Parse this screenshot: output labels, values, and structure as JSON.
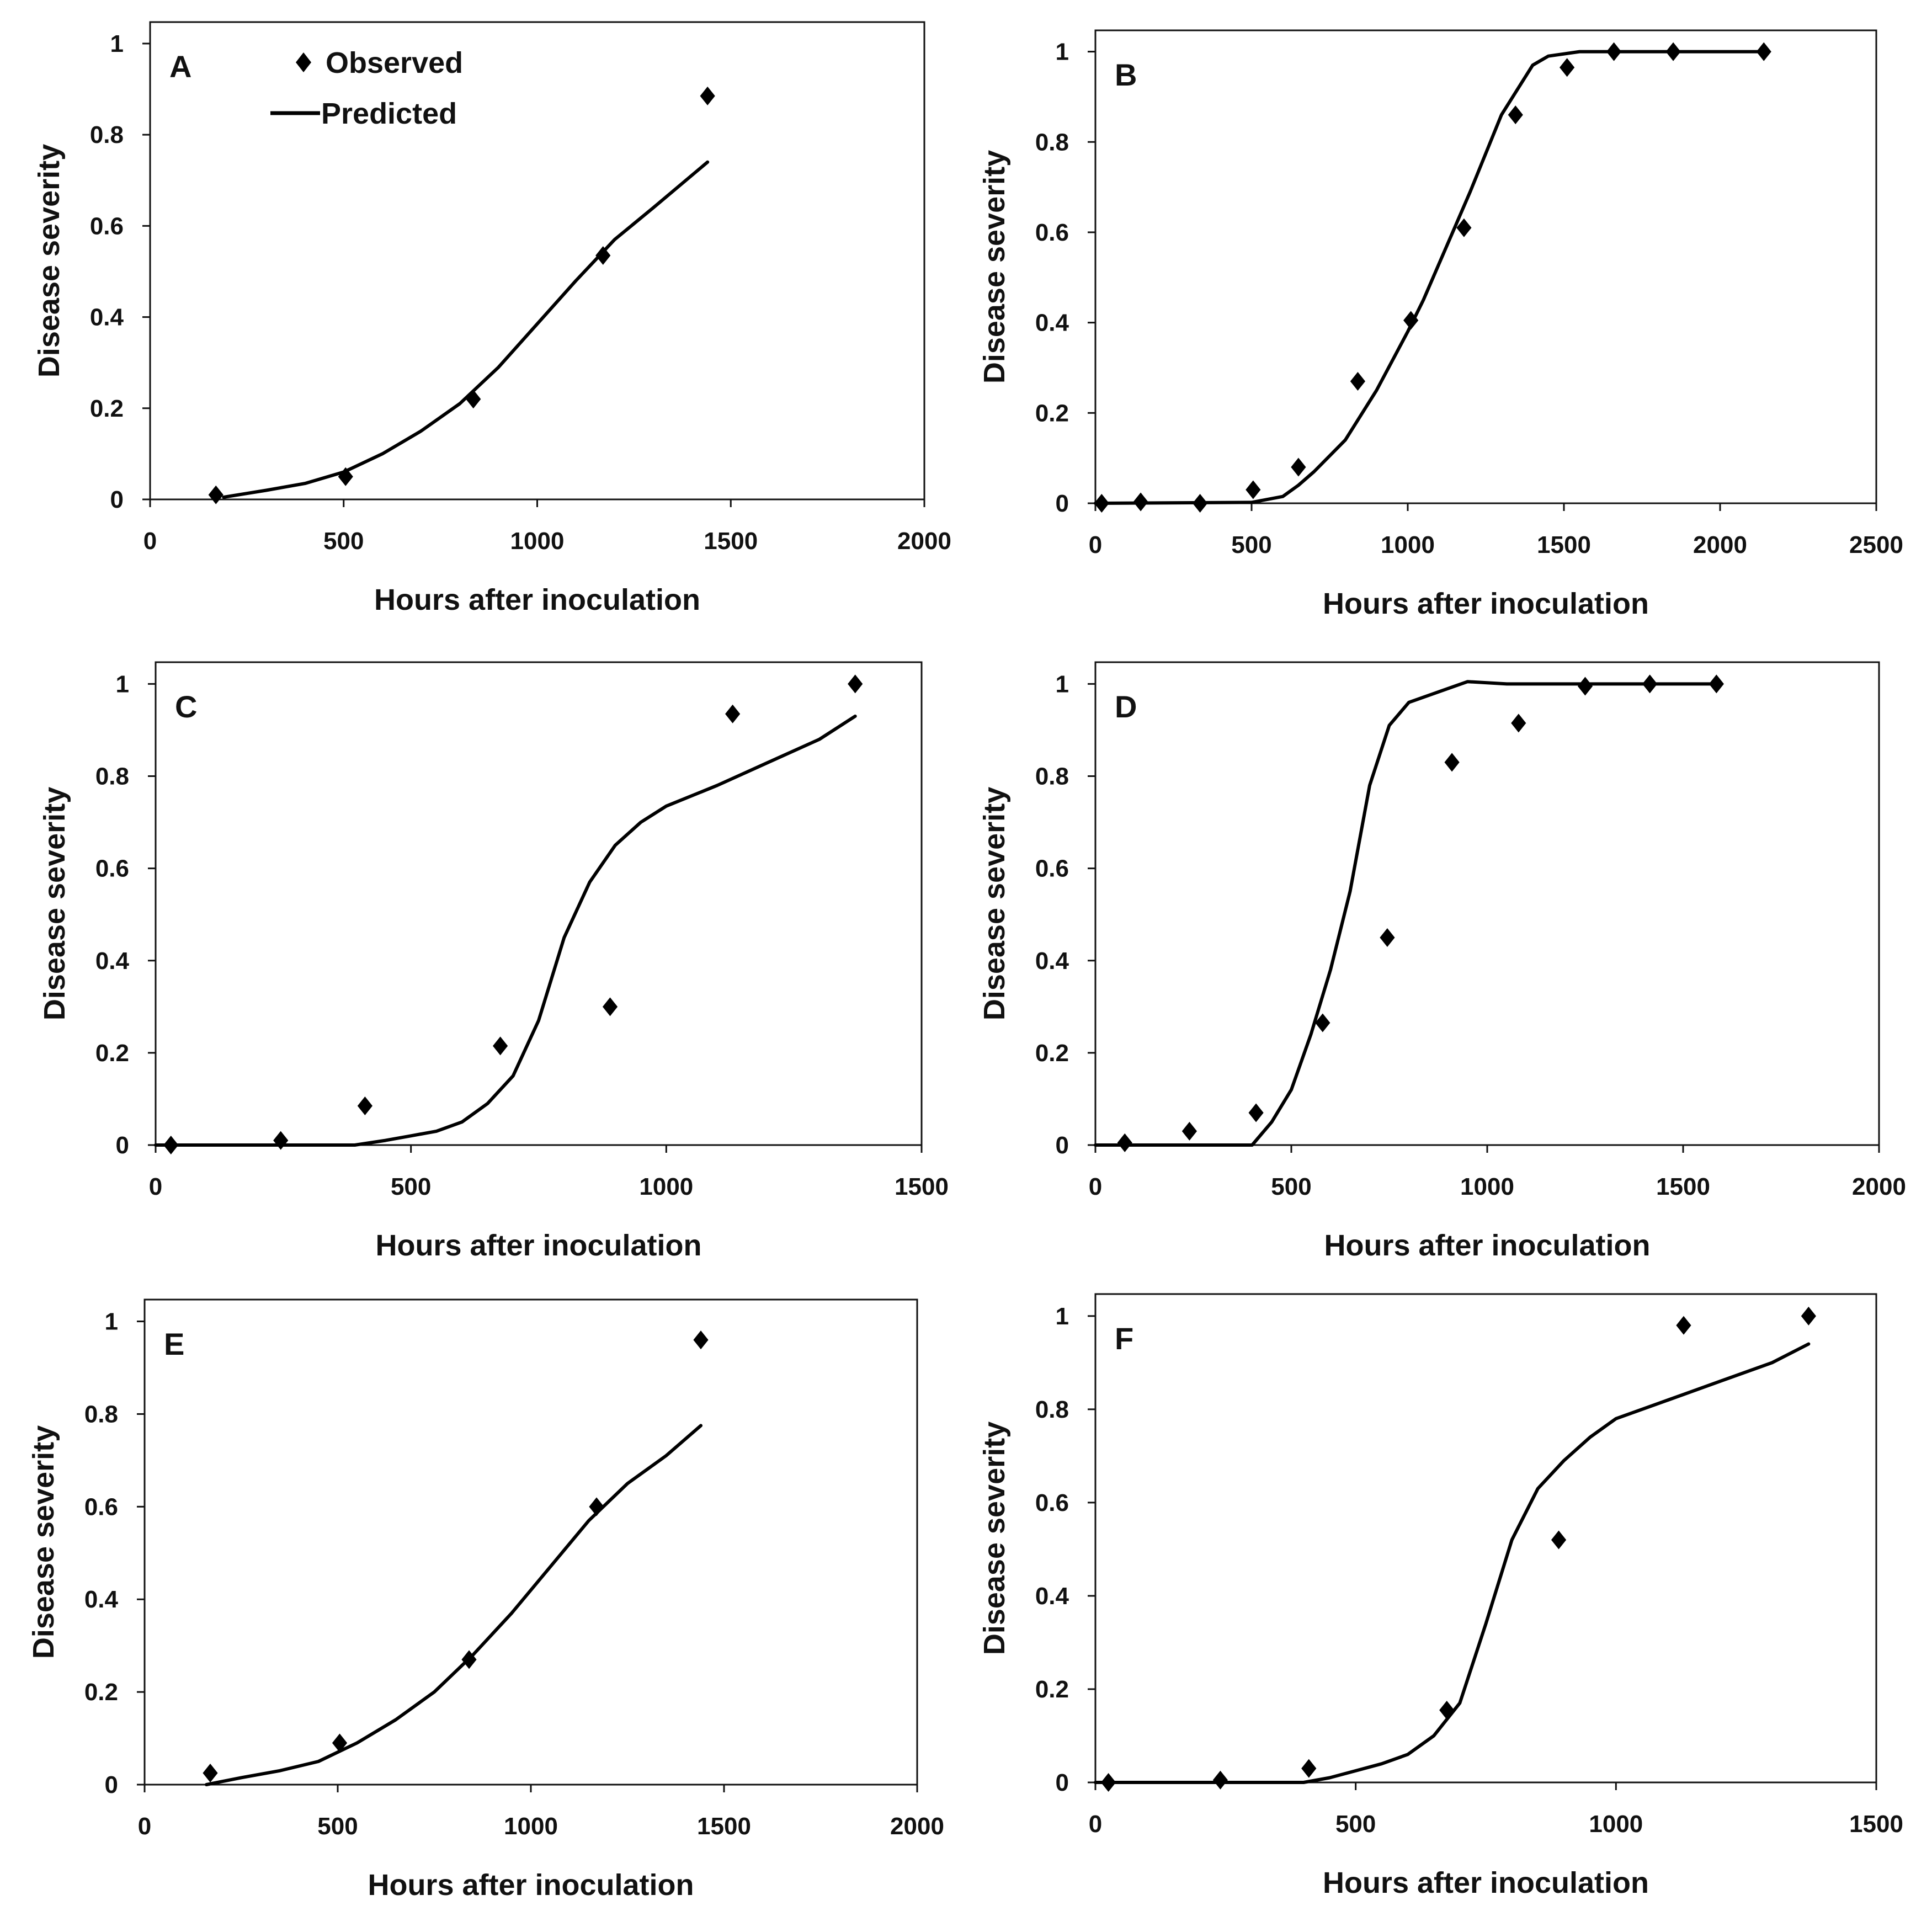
{
  "figure": {
    "legend": {
      "observed": "Observed",
      "predicted": "Predicted"
    }
  },
  "chart_data": [
    {
      "panel": "A",
      "type": "scatter+line",
      "xlabel": "Hours after inoculation",
      "ylabel": "Disease severity",
      "xlim": [
        0,
        2000
      ],
      "ylim": [
        0,
        1.0
      ],
      "xticks": [
        0,
        500,
        1000,
        1500,
        2000
      ],
      "yticks": [
        0,
        0.2,
        0.4,
        0.6,
        0.8,
        1
      ],
      "observed": [
        [
          170,
          0.01
        ],
        [
          505,
          0.05
        ],
        [
          835,
          0.22
        ],
        [
          1170,
          0.535
        ],
        [
          1440,
          0.885
        ]
      ],
      "predicted": [
        [
          190,
          0.005
        ],
        [
          300,
          0.02
        ],
        [
          400,
          0.035
        ],
        [
          500,
          0.06
        ],
        [
          600,
          0.1
        ],
        [
          700,
          0.15
        ],
        [
          800,
          0.21
        ],
        [
          900,
          0.29
        ],
        [
          1000,
          0.385
        ],
        [
          1100,
          0.48
        ],
        [
          1200,
          0.57
        ],
        [
          1300,
          0.64
        ],
        [
          1440,
          0.74
        ]
      ]
    },
    {
      "panel": "B",
      "type": "scatter+line",
      "xlabel": "Hours after inoculation",
      "ylabel": "Disease severity",
      "xlim": [
        0,
        2500
      ],
      "ylim": [
        0,
        1.0
      ],
      "xticks": [
        0,
        500,
        1000,
        1500,
        2000,
        2500
      ],
      "yticks": [
        0,
        0.2,
        0.4,
        0.6,
        0.8,
        1
      ],
      "observed": [
        [
          20,
          0
        ],
        [
          145,
          0.003
        ],
        [
          335,
          0
        ],
        [
          505,
          0.03
        ],
        [
          650,
          0.08
        ],
        [
          840,
          0.27
        ],
        [
          1010,
          0.405
        ],
        [
          1180,
          0.61
        ],
        [
          1345,
          0.86
        ],
        [
          1510,
          0.965
        ],
        [
          1660,
          1.0
        ],
        [
          1850,
          1.0
        ],
        [
          2140,
          1.0
        ]
      ],
      "predicted": [
        [
          0,
          0
        ],
        [
          500,
          0.002
        ],
        [
          600,
          0.015
        ],
        [
          650,
          0.04
        ],
        [
          700,
          0.07
        ],
        [
          800,
          0.14
        ],
        [
          900,
          0.25
        ],
        [
          1000,
          0.38
        ],
        [
          1050,
          0.45
        ],
        [
          1100,
          0.53
        ],
        [
          1150,
          0.61
        ],
        [
          1200,
          0.69
        ],
        [
          1300,
          0.86
        ],
        [
          1400,
          0.97
        ],
        [
          1450,
          0.99
        ],
        [
          1550,
          1.0
        ],
        [
          2140,
          1.0
        ]
      ]
    },
    {
      "panel": "C",
      "type": "scatter+line",
      "xlabel": "Hours after inoculation",
      "ylabel": "Disease severity",
      "xlim": [
        0,
        1500
      ],
      "ylim": [
        0,
        1.0
      ],
      "xticks": [
        0,
        500,
        1000,
        1500
      ],
      "yticks": [
        0,
        0.2,
        0.4,
        0.6,
        0.8,
        1
      ],
      "observed": [
        [
          30,
          0
        ],
        [
          245,
          0.01
        ],
        [
          410,
          0.085
        ],
        [
          675,
          0.215
        ],
        [
          890,
          0.3
        ],
        [
          1130,
          0.935
        ],
        [
          1370,
          1.0
        ]
      ],
      "predicted": [
        [
          0,
          0
        ],
        [
          390,
          0
        ],
        [
          450,
          0.01
        ],
        [
          500,
          0.02
        ],
        [
          550,
          0.03
        ],
        [
          600,
          0.05
        ],
        [
          650,
          0.09
        ],
        [
          700,
          0.15
        ],
        [
          750,
          0.27
        ],
        [
          800,
          0.45
        ],
        [
          850,
          0.57
        ],
        [
          900,
          0.65
        ],
        [
          950,
          0.7
        ],
        [
          1000,
          0.735
        ],
        [
          1100,
          0.78
        ],
        [
          1200,
          0.83
        ],
        [
          1300,
          0.88
        ],
        [
          1370,
          0.93
        ]
      ]
    },
    {
      "panel": "D",
      "type": "scatter+line",
      "xlabel": "Hours after inoculation",
      "ylabel": "Disease severity",
      "xlim": [
        0,
        2000
      ],
      "ylim": [
        0,
        1.0
      ],
      "xticks": [
        0,
        500,
        1000,
        1500,
        2000
      ],
      "yticks": [
        0,
        0.2,
        0.4,
        0.6,
        0.8,
        1
      ],
      "observed": [
        [
          75,
          0.005
        ],
        [
          240,
          0.03
        ],
        [
          410,
          0.07
        ],
        [
          580,
          0.265
        ],
        [
          745,
          0.45
        ],
        [
          910,
          0.83
        ],
        [
          1080,
          0.915
        ],
        [
          1250,
          0.995
        ],
        [
          1415,
          1.0
        ],
        [
          1585,
          1.0
        ]
      ],
      "predicted": [
        [
          0,
          0
        ],
        [
          400,
          0
        ],
        [
          450,
          0.05
        ],
        [
          500,
          0.12
        ],
        [
          550,
          0.24
        ],
        [
          600,
          0.38
        ],
        [
          650,
          0.55
        ],
        [
          700,
          0.78
        ],
        [
          750,
          0.91
        ],
        [
          800,
          0.96
        ],
        [
          900,
          0.99
        ],
        [
          950,
          1.005
        ],
        [
          1050,
          1.0
        ],
        [
          1585,
          1.0
        ]
      ]
    },
    {
      "panel": "E",
      "type": "scatter+line",
      "xlabel": "Hours after inoculation",
      "ylabel": "Disease severity",
      "xlim": [
        0,
        2000
      ],
      "ylim": [
        0,
        1.0
      ],
      "xticks": [
        0,
        500,
        1000,
        1500,
        2000
      ],
      "yticks": [
        0,
        0.2,
        0.4,
        0.6,
        0.8,
        1
      ],
      "observed": [
        [
          170,
          0.025
        ],
        [
          505,
          0.09
        ],
        [
          840,
          0.27
        ],
        [
          1170,
          0.6
        ],
        [
          1440,
          0.96
        ]
      ],
      "predicted": [
        [
          160,
          0
        ],
        [
          250,
          0.015
        ],
        [
          350,
          0.03
        ],
        [
          450,
          0.05
        ],
        [
          550,
          0.09
        ],
        [
          650,
          0.14
        ],
        [
          750,
          0.2
        ],
        [
          850,
          0.28
        ],
        [
          950,
          0.37
        ],
        [
          1050,
          0.47
        ],
        [
          1150,
          0.57
        ],
        [
          1250,
          0.65
        ],
        [
          1350,
          0.71
        ],
        [
          1440,
          0.775
        ]
      ]
    },
    {
      "panel": "F",
      "type": "scatter+line",
      "xlabel": "Hours after inoculation",
      "ylabel": "Disease severity",
      "xlim": [
        0,
        1500
      ],
      "ylim": [
        0,
        1.0
      ],
      "xticks": [
        0,
        500,
        1000,
        1500
      ],
      "yticks": [
        0,
        0.2,
        0.4,
        0.6,
        0.8,
        1
      ],
      "observed": [
        [
          25,
          0
        ],
        [
          240,
          0.005
        ],
        [
          410,
          0.03
        ],
        [
          675,
          0.155
        ],
        [
          890,
          0.52
        ],
        [
          1130,
          0.98
        ],
        [
          1370,
          1.0
        ]
      ],
      "predicted": [
        [
          0,
          0
        ],
        [
          280,
          0
        ],
        [
          400,
          0
        ],
        [
          450,
          0.01
        ],
        [
          500,
          0.025
        ],
        [
          550,
          0.04
        ],
        [
          600,
          0.06
        ],
        [
          650,
          0.1
        ],
        [
          700,
          0.17
        ],
        [
          750,
          0.34
        ],
        [
          800,
          0.52
        ],
        [
          850,
          0.63
        ],
        [
          900,
          0.69
        ],
        [
          950,
          0.74
        ],
        [
          1000,
          0.78
        ],
        [
          1100,
          0.82
        ],
        [
          1200,
          0.86
        ],
        [
          1300,
          0.9
        ],
        [
          1370,
          0.94
        ]
      ]
    }
  ]
}
